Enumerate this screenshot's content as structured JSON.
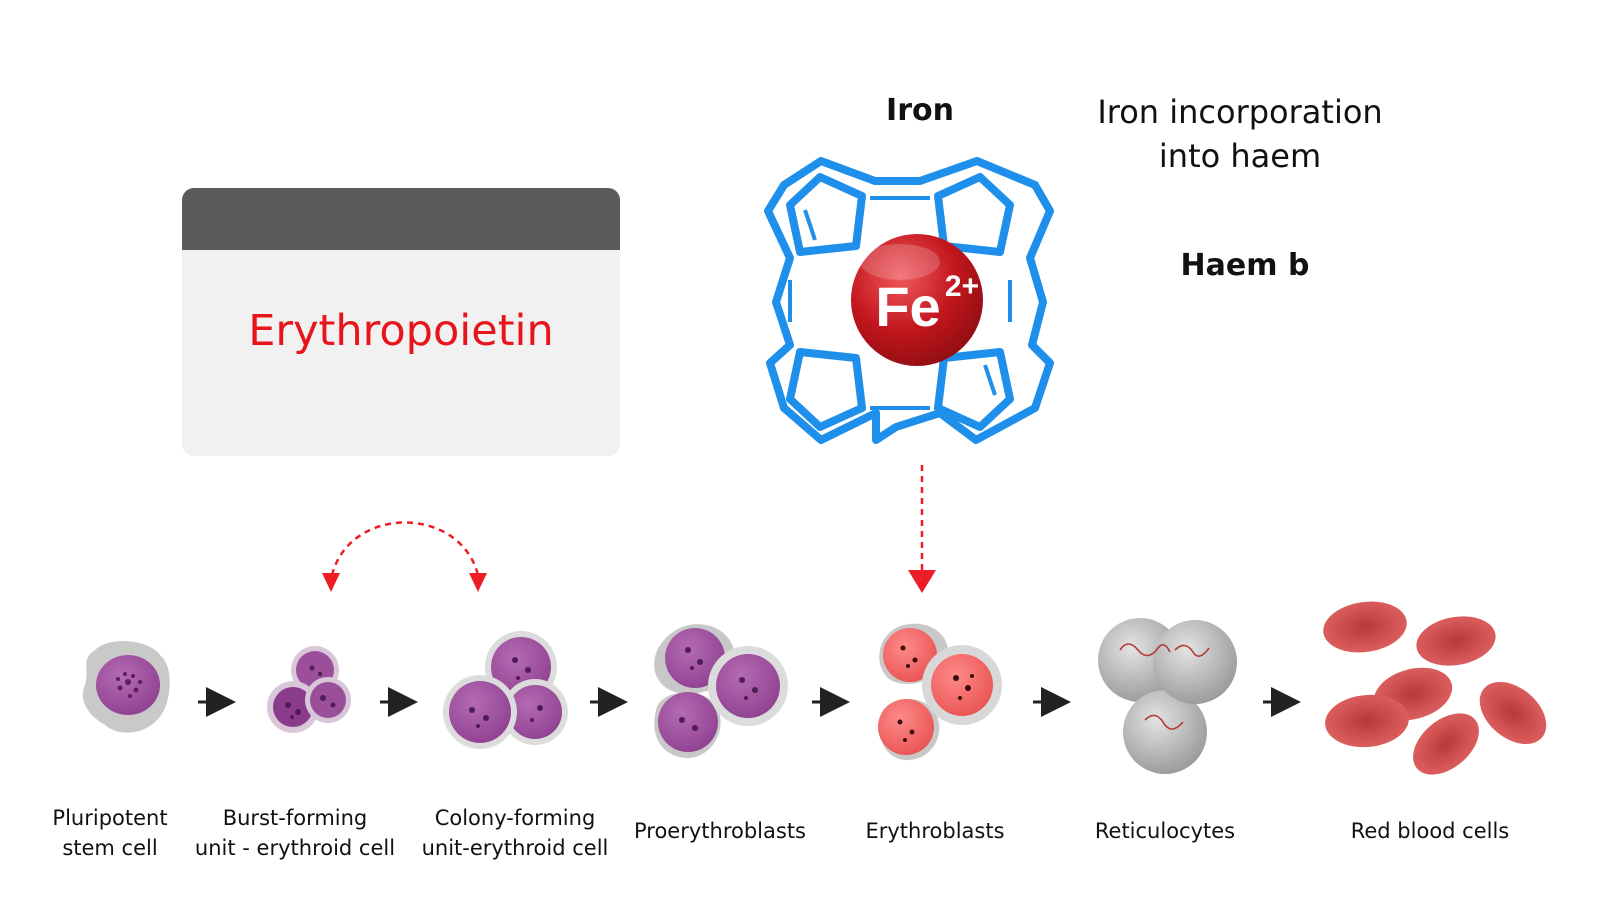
{
  "erythropoietin": {
    "label": "Erythropoietin"
  },
  "iron": {
    "title": "Iron",
    "ion": "Fe",
    "charge": "2+"
  },
  "haem": {
    "incorporation": "Iron incorporation into haem",
    "name": "Haem b"
  },
  "stages": [
    {
      "label": "Pluripotent stem cell"
    },
    {
      "label": "Burst-forming unit - erythroid cell"
    },
    {
      "label": "Colony-forming unit-erythroid cell"
    },
    {
      "label": "Proerythroblasts"
    },
    {
      "label": "Erythroblasts"
    },
    {
      "label": "Reticulocytes"
    },
    {
      "label": "Red blood cells"
    }
  ],
  "colors": {
    "epo_text": "#e8141b",
    "card_bar": "#5b5b5b",
    "card_bg": "#f1f1f1",
    "porphyrin": "#1e8fea",
    "iron_ball": "#c2161d",
    "stem_purple": "#a23c97",
    "rbc": "#d9534f",
    "arrow_red": "#ee1c25"
  }
}
